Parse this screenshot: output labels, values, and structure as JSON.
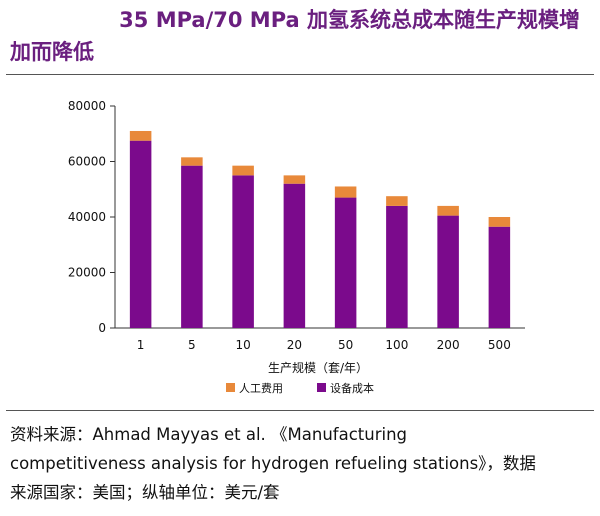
{
  "title": "35 MPa/70 MPa 加氢系统总成本随生产规模增加而降低",
  "title_line1": "35 MPa/70 MPa 加氢系统总成本随生产规模增",
  "title_line2": "加而降低",
  "source_line1": "资料来源：Ahmad Mayyas et al. 《Manufacturing",
  "source_line2": "competitiveness analysis for hydrogen refueling stations》，数据",
  "source_line3": "来源国家：美国；纵轴单位：美元/套",
  "colors": {
    "equipment": "#7b0a8c",
    "labor": "#e8893a",
    "title": "#6a1f7f"
  },
  "chart_data": {
    "type": "bar",
    "stacked": true,
    "categories": [
      "1",
      "5",
      "10",
      "20",
      "50",
      "100",
      "200",
      "500"
    ],
    "series": [
      {
        "name": "设备成本",
        "values": [
          67500,
          58500,
          55000,
          52000,
          47000,
          44000,
          40500,
          36500
        ]
      },
      {
        "name": "人工费用",
        "values": [
          3500,
          3000,
          3500,
          3000,
          4000,
          3500,
          3500,
          3500
        ]
      }
    ],
    "xlabel": "生产规模（套/年）",
    "ylabel": "",
    "ylim": [
      0,
      80000
    ],
    "yticks": [
      0,
      20000,
      40000,
      60000,
      80000
    ],
    "legend_order": [
      "人工费用",
      "设备成本"
    ],
    "legend_position": "bottom",
    "grid": false
  }
}
